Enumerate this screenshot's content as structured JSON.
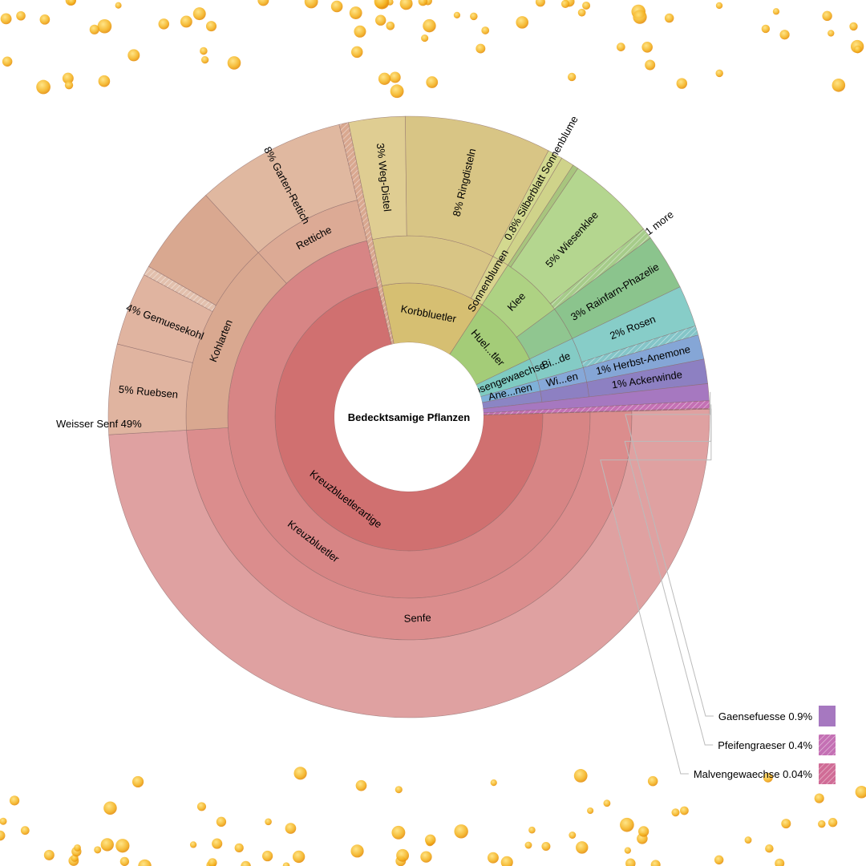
{
  "chart_data": {
    "type": "sunburst",
    "root": "Bedecktsamige Pflanzen",
    "children": [
      {
        "name": "Kreuzbluetlerartige",
        "value": 71.0,
        "color": "#d07070",
        "children": [
          {
            "name": "Kreuzbluetler",
            "value": 71.0,
            "color": "#d78585",
            "children": [
              {
                "name": "Senfe",
                "value": 49.0,
                "color": "#db8d8d",
                "children": [
                  {
                    "name": "Weisser Senf",
                    "pct": "49%",
                    "value": 49.0,
                    "color": "#dfa1a1"
                  }
                ]
              },
              {
                "name": "Kohlarten",
                "value": 14.0,
                "color": "#d9a890",
                "children": [
                  {
                    "name": "Ruebsen",
                    "pct": "5%",
                    "value": 4.8,
                    "color": "#e0b4a0"
                  },
                  {
                    "name": "Gemuesekohl",
                    "pct": "4%",
                    "value": 3.9,
                    "color": "#e0b4a0"
                  },
                  {
                    "name": "",
                    "value": 0.5,
                    "color": "#e2c0ad",
                    "hatched": true
                  },
                  {
                    "name": "",
                    "value": 4.8,
                    "color": "#d9a890"
                  }
                ]
              },
              {
                "name": "Rettiche",
                "value": 8.0,
                "color": "#dcaa95",
                "children": [
                  {
                    "name": "Garten-Rettich",
                    "pct": "8%",
                    "value": 8.0,
                    "color": "#e0b8a0"
                  }
                ]
              }
            ]
          }
        ]
      },
      {
        "name": "",
        "value": 0.5,
        "color": "#d9a890",
        "hatched": true
      },
      {
        "name": "Korbbluetler",
        "value": 12.3,
        "color": "#d6bf72",
        "children": [
          {
            "name": "",
            "value": 10.8,
            "color": "#d8c585",
            "children": [
              {
                "name": "Weg-Distel",
                "pct": "3%",
                "value": 3.0,
                "color": "#dfcd92"
              },
              {
                "name": "Ringdisteln",
                "pct": "8%",
                "value": 7.8,
                "color": "#d8c585"
              }
            ]
          },
          {
            "name": "Sonnenblumen",
            "value": 1.5,
            "color": "#d8d48e",
            "children": [
              {
                "name": "Silberblatt Sonnenblume",
                "pct": "0.8%",
                "value": 0.8,
                "color": "#d3d98f"
              },
              {
                "name": "",
                "value": 0.7,
                "color": "#cfd38a"
              }
            ]
          }
        ]
      },
      {
        "name": "Huel...tler",
        "value": 8.6,
        "color": "#a4cc78",
        "children": [
          {
            "name": "Klee",
            "value": 5.6,
            "color": "#aed283",
            "children": [
              {
                "name": "",
                "value": 0.3,
                "color": "#a8c57e"
              },
              {
                "name": "Wiesenklee",
                "pct": "5%",
                "value": 4.7,
                "color": "#b4d68f"
              },
              {
                "name": "1 more",
                "value": 0.6,
                "color": "#a6cc8a",
                "hatched": true
              }
            ]
          },
          {
            "name": "",
            "value": 3.0,
            "color": "#90c690",
            "children": [
              {
                "name": "Rainfarn-Phazelie",
                "pct": "3%",
                "value": 3.0,
                "color": "#8bc48d"
              }
            ]
          }
        ]
      },
      {
        "name": "Rosengewaechse",
        "value": 2.7,
        "color": "#7fcbc2",
        "children": [
          {
            "name": "Bi...de",
            "value": 2.7,
            "color": "#84cbc5",
            "children": [
              {
                "name": "Rosen",
                "pct": "2%",
                "value": 2.2,
                "color": "#87cdc8"
              },
              {
                "name": "",
                "value": 0.5,
                "color": "#84c5c8",
                "hatched": true
              }
            ]
          }
        ]
      },
      {
        "name": "Ane...nen",
        "value": 1.3,
        "color": "#7fb1d8",
        "children": [
          {
            "name": "Wi...en",
            "value": 1.3,
            "color": "#86a8d8",
            "children": [
              {
                "name": "Herbst-Anemone",
                "pct": "1%",
                "value": 1.3,
                "color": "#85a6d6"
              }
            ]
          }
        ]
      },
      {
        "name": "",
        "value": 1.3,
        "color": "#8b85c4",
        "children": [
          {
            "name": "",
            "value": 1.3,
            "color": "#8d80c2",
            "children": [
              {
                "name": "Ackerwinde",
                "pct": "1%",
                "value": 1.3,
                "color": "#8d80c2"
              }
            ]
          }
        ]
      },
      {
        "name": "Gaensefuesse",
        "pct": "0.9%",
        "value": 0.9,
        "color": "#a678c0",
        "legend": true
      },
      {
        "name": "Pfeifengraeser",
        "pct": "0.4%",
        "value": 0.4,
        "color": "#c470b4",
        "hatched": true,
        "legend": true
      },
      {
        "name": "Malvengewaechse",
        "pct": "0.04%",
        "value": 0.04,
        "color": "#d06c96",
        "hatched": true,
        "legend": true
      }
    ]
  }
}
